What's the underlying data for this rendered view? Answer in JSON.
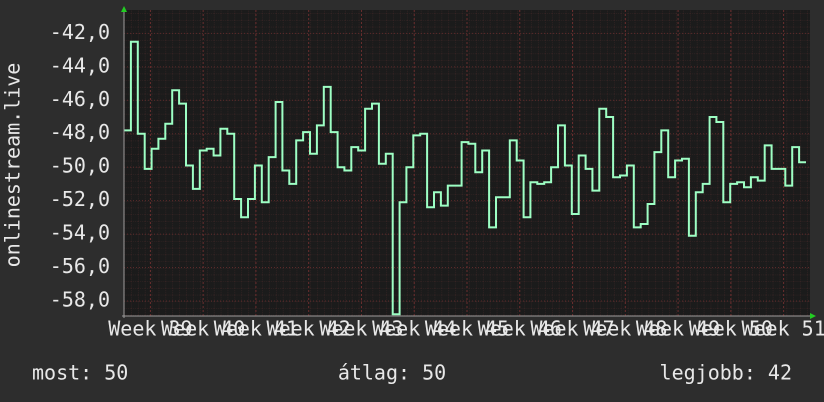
{
  "chart_data": {
    "type": "step",
    "y_label": "onlinestream.live",
    "categories": [
      null,
      null,
      null,
      null,
      null,
      null,
      null,
      null,
      null,
      null,
      null,
      null,
      null,
      null,
      null,
      null,
      null,
      null,
      null,
      null,
      null,
      null,
      null,
      null,
      null,
      null,
      null,
      null,
      null,
      null,
      null,
      null,
      null,
      null,
      null,
      null,
      null,
      null,
      null,
      null,
      null,
      null,
      null,
      null,
      null,
      null,
      null,
      null,
      null,
      null,
      null,
      null,
      null,
      null,
      null,
      null,
      null,
      null,
      null,
      null,
      null,
      null,
      null,
      null,
      null,
      null,
      null,
      null,
      null,
      null,
      null,
      null,
      null,
      null,
      null,
      null,
      null,
      null,
      null,
      null,
      null,
      null,
      null,
      null,
      null,
      null,
      null,
      null,
      null,
      null,
      null,
      null,
      null,
      null,
      null,
      null,
      null,
      null,
      null
    ],
    "series": [
      {
        "name": null,
        "color": "#9dffc4",
        "values": [
          -47.8,
          -42.5,
          -48.0,
          -50.1,
          -48.9,
          -48.3,
          -47.4,
          -45.4,
          -46.2,
          -49.9,
          -51.3,
          -49.0,
          -48.9,
          -49.3,
          -47.7,
          -48.0,
          -51.9,
          -53.0,
          -51.9,
          -49.9,
          -52.1,
          -49.4,
          -46.1,
          -50.2,
          -51.0,
          -48.4,
          -47.9,
          -49.2,
          -47.5,
          -45.2,
          -47.9,
          -50.0,
          -50.2,
          -48.8,
          -49.0,
          -46.5,
          -46.2,
          -49.8,
          -49.2,
          -58.8,
          -52.1,
          -50.0,
          -48.1,
          -48.0,
          -52.4,
          -51.5,
          -52.3,
          -51.1,
          -51.1,
          -48.5,
          -48.6,
          -50.3,
          -49.0,
          -53.6,
          -51.8,
          -51.8,
          -48.4,
          -49.6,
          -53.0,
          -50.9,
          -51.0,
          -50.9,
          -50.0,
          -47.5,
          -49.9,
          -52.8,
          -49.3,
          -50.1,
          -51.4,
          -46.5,
          -47.0,
          -50.6,
          -50.5,
          -49.9,
          -53.6,
          -53.4,
          -52.2,
          -49.1,
          -47.8,
          -50.6,
          -49.6,
          -49.5,
          -54.1,
          -51.5,
          -51.0,
          -47.0,
          -47.3,
          -52.1,
          -51.0,
          -50.9,
          -51.2,
          -50.6,
          -50.8,
          -48.7,
          -50.1,
          -50.1,
          -51.1,
          -48.8,
          -49.7
        ]
      }
    ],
    "x_labels": [
      "Week 39",
      "Week 40",
      "Week 41",
      "Week 42",
      "Week 43",
      "Week 44",
      "Week 45",
      "Week 46",
      "Week 47",
      "Week 48",
      "Week 49",
      "Week 50",
      "Week 51"
    ],
    "ylim": [
      -58.9,
      -40.6
    ],
    "yticks": [
      {
        "value": -42,
        "label": "-42,0"
      },
      {
        "value": -44,
        "label": "-44,0"
      },
      {
        "value": -46,
        "label": "-46,0"
      },
      {
        "value": -48,
        "label": "-48,0"
      },
      {
        "value": -50,
        "label": "-50,0"
      },
      {
        "value": -52,
        "label": "-52,0"
      },
      {
        "value": -54,
        "label": "-54,0"
      },
      {
        "value": -56,
        "label": "-56,0"
      },
      {
        "value": -58,
        "label": "-58,0"
      }
    ],
    "grid": true,
    "footer": [
      "most: 50",
      "átlag: 50",
      "legjobb: 42"
    ]
  }
}
